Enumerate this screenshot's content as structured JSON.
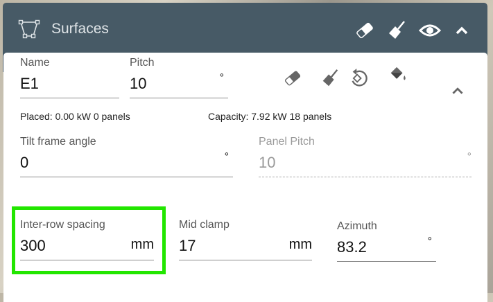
{
  "header": {
    "title": "Surfaces",
    "icons": [
      "polygon-surface-icon",
      "eraser-icon",
      "broom-icon",
      "eye-icon",
      "chevron-up-icon"
    ]
  },
  "toolbar": {
    "icons": [
      "eraser-icon",
      "broom-icon",
      "rotate-icon",
      "paint-bucket-icon",
      "chevron-up-icon"
    ]
  },
  "fields": {
    "name": {
      "label": "Name",
      "value": "E1"
    },
    "pitch": {
      "label": "Pitch",
      "value": "10",
      "unit": "°"
    },
    "tilt": {
      "label": "Tilt frame angle",
      "value": "0",
      "unit": "°"
    },
    "panel_pitch": {
      "label": "Panel Pitch",
      "value": "10",
      "unit": "°",
      "disabled": true
    },
    "inter_row": {
      "label": "Inter-row spacing",
      "value": "300",
      "unit": "mm",
      "highlighted": true
    },
    "mid_clamp": {
      "label": "Mid clamp",
      "value": "17",
      "unit": "mm"
    },
    "azimuth": {
      "label": "Azimuth",
      "value": "83.2",
      "unit": "°"
    }
  },
  "info": {
    "placed": "Placed: 0.00 kW 0 panels",
    "capacity": "Capacity: 7.92 kW 18 panels"
  },
  "colors": {
    "header": "#475a66",
    "highlight": "#22e600"
  }
}
